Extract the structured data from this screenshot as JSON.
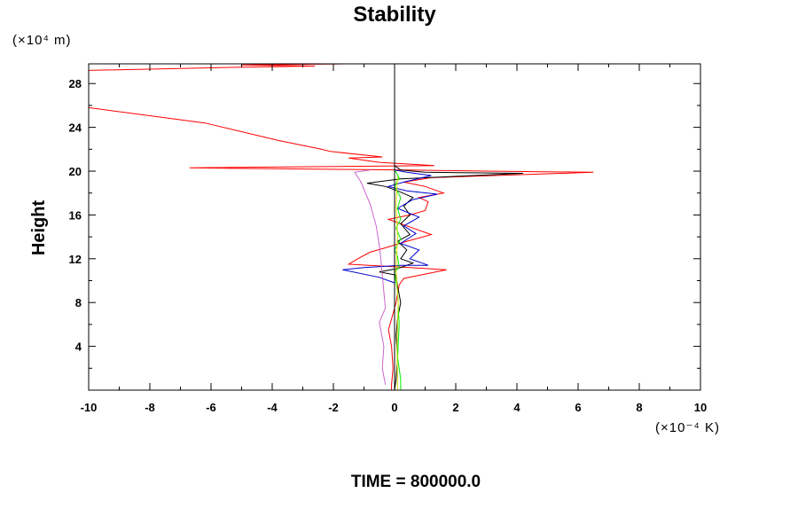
{
  "chart_data": {
    "type": "line",
    "title": "Stability",
    "ylabel": "Height",
    "y_unit_label": "(×10⁴ m)",
    "x_unit_label": "(×10⁻⁴ K)",
    "xlim": [
      -10,
      10
    ],
    "ylim": [
      0,
      29.8
    ],
    "x_ticks": [
      -10,
      -8,
      -6,
      -4,
      -2,
      0,
      2,
      4,
      6,
      8,
      10
    ],
    "y_ticks": [
      4,
      8,
      12,
      16,
      20,
      24,
      28
    ],
    "grid": false,
    "zero_line_x": 0,
    "footer": "TIME = 800000.0",
    "series": [
      {
        "color": "#ff0000",
        "points": [
          [
            -0.1,
            0
          ],
          [
            -0.1,
            0.5
          ],
          [
            -0.05,
            2
          ],
          [
            -0.1,
            4
          ],
          [
            -0.2,
            5.5
          ],
          [
            -0.1,
            6.5
          ],
          [
            0.05,
            8
          ],
          [
            0.15,
            9.6
          ],
          [
            0.3,
            10.2
          ],
          [
            1.0,
            10.6
          ],
          [
            1.7,
            11.0
          ],
          [
            0.5,
            11.2
          ],
          [
            -1.5,
            11.5
          ],
          [
            -1.2,
            12
          ],
          [
            -0.8,
            12.6
          ],
          [
            -0.3,
            13.0
          ],
          [
            0.4,
            13.6
          ],
          [
            1.2,
            14.2
          ],
          [
            0.6,
            14.8
          ],
          [
            -0.2,
            15.6
          ],
          [
            0.5,
            16.0
          ],
          [
            1.0,
            16.4
          ],
          [
            1.1,
            17.2
          ],
          [
            0.8,
            17.6
          ],
          [
            1.6,
            18.0
          ],
          [
            1.0,
            18.6
          ],
          [
            0.3,
            19.0
          ],
          [
            1.2,
            19.4
          ],
          [
            6.5,
            19.9
          ],
          [
            3.0,
            20.0
          ],
          [
            0.5,
            20.1
          ],
          [
            -3.0,
            20.2
          ],
          [
            -6.7,
            20.3
          ],
          [
            -3.0,
            20.4
          ],
          [
            1.3,
            20.5
          ],
          [
            -0.5,
            20.8
          ],
          [
            -1.5,
            21.2
          ],
          [
            -0.4,
            21.3
          ],
          [
            -2.1,
            21.8
          ],
          [
            -2.4,
            22.0
          ],
          [
            -3.8,
            22.8
          ],
          [
            -6.2,
            24.4
          ],
          [
            -10,
            25.8
          ]
        ]
      },
      {
        "color": "#ff0000",
        "points": [
          [
            -10,
            29.2
          ],
          [
            -5,
            29.5
          ],
          [
            -2.6,
            29.6
          ],
          [
            -5,
            29.7
          ],
          [
            -1.6,
            29.8
          ]
        ]
      },
      {
        "color": "#000000",
        "points": [
          [
            0,
            0
          ],
          [
            0.05,
            1
          ],
          [
            0.1,
            3
          ],
          [
            0.05,
            5
          ],
          [
            0.1,
            6.5
          ],
          [
            0.2,
            8
          ],
          [
            0.1,
            9.5
          ],
          [
            0.05,
            10.5
          ],
          [
            -0.5,
            10.8
          ],
          [
            0.1,
            11.1
          ],
          [
            0.6,
            11.6
          ],
          [
            0.2,
            12.0
          ],
          [
            0.4,
            12.8
          ],
          [
            0.1,
            13.6
          ],
          [
            0.5,
            14.2
          ],
          [
            0.2,
            15.2
          ],
          [
            0.5,
            16.0
          ],
          [
            0.3,
            16.8
          ],
          [
            0.6,
            17.6
          ],
          [
            0.1,
            18.2
          ],
          [
            -0.3,
            18.6
          ],
          [
            -0.9,
            18.9
          ],
          [
            0.2,
            19.3
          ],
          [
            4.2,
            19.8
          ],
          [
            1.0,
            19.9
          ],
          [
            0.2,
            20.1
          ],
          [
            0,
            20.5
          ]
        ]
      },
      {
        "color": "#0000cc",
        "points": [
          [
            0,
            9.8
          ],
          [
            -0.5,
            10.3
          ],
          [
            -1.7,
            11.0
          ],
          [
            -1.0,
            11.2
          ],
          [
            0.2,
            11.4
          ],
          [
            1.1,
            11.4
          ],
          [
            0.5,
            12.0
          ],
          [
            0.8,
            12.8
          ],
          [
            0.2,
            13.4
          ],
          [
            0.7,
            14.3
          ],
          [
            0.3,
            15.0
          ],
          [
            0.8,
            15.8
          ],
          [
            0.1,
            16.6
          ],
          [
            0.6,
            17.4
          ],
          [
            1.4,
            17.9
          ],
          [
            0.4,
            18.2
          ],
          [
            -0.2,
            18.6
          ],
          [
            0.3,
            19.0
          ],
          [
            1.2,
            19.6
          ],
          [
            0.4,
            19.9
          ],
          [
            0,
            20.1
          ]
        ]
      },
      {
        "color": "#cc66cc",
        "points": [
          [
            -0.3,
            0.5
          ],
          [
            -0.4,
            2
          ],
          [
            -0.35,
            4
          ],
          [
            -0.5,
            6.2
          ],
          [
            -0.3,
            7.5
          ],
          [
            -0.45,
            12.0
          ],
          [
            -0.5,
            13.2
          ],
          [
            -0.6,
            15.0
          ],
          [
            -0.8,
            17.0
          ],
          [
            -1.1,
            19.0
          ],
          [
            -1.3,
            19.9
          ],
          [
            -0.8,
            20.1
          ]
        ]
      },
      {
        "color": "#00ee00",
        "points": [
          [
            0.2,
            0
          ],
          [
            0.2,
            1
          ],
          [
            0.1,
            3
          ],
          [
            0.15,
            6
          ],
          [
            0.1,
            9
          ],
          [
            0.0,
            10.8
          ],
          [
            0.15,
            11.2
          ],
          [
            0.1,
            12.2
          ],
          [
            0.0,
            12.8
          ],
          [
            0.2,
            13.8
          ],
          [
            0.05,
            14.8
          ],
          [
            0.2,
            15.6
          ],
          [
            0.1,
            16.6
          ],
          [
            0.2,
            17.6
          ],
          [
            0.0,
            18.6
          ],
          [
            0.15,
            19.4
          ],
          [
            0.05,
            19.9
          ],
          [
            0,
            20.1
          ]
        ]
      },
      {
        "color": "#dddd00",
        "points": [
          [
            0.1,
            0
          ],
          [
            0.08,
            4
          ],
          [
            0.12,
            8
          ],
          [
            0.05,
            11
          ],
          [
            0.1,
            14
          ],
          [
            0.05,
            17
          ],
          [
            0.1,
            19.5
          ]
        ]
      }
    ]
  }
}
